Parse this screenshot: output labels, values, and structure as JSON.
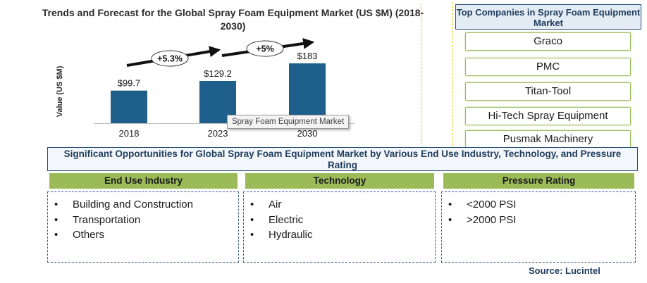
{
  "chart_data": {
    "type": "bar",
    "title": "Trends and Forecast for the Global Spray Foam Equipment Market (US $M) (2018-2030)",
    "ylabel": "Value (US $M)",
    "xlabel": "",
    "categories": [
      "2018",
      "2023",
      "2030"
    ],
    "values": [
      99.7,
      129.2,
      183
    ],
    "value_labels": [
      "$99.7",
      "$129.2",
      "$183"
    ],
    "ylim": [
      0,
      183
    ],
    "grid": false,
    "bar_color": "#1f5f8b",
    "growth_annotations": [
      {
        "from": "2018",
        "to": "2023",
        "label": "+5.3%"
      },
      {
        "from": "2023",
        "to": "2030",
        "label": "+5%"
      }
    ],
    "tooltip": "Spray Foam Equipment Market"
  },
  "companies": {
    "header": "Top Companies in Spray Foam Equipment Market",
    "items": [
      "Graco",
      "PMC",
      "Titan-Tool",
      "Hi-Tech Spray Equipment",
      "Pusmak Machinery"
    ]
  },
  "opportunities": {
    "header": "Significant Opportunities for Global Spray Foam Equipment Market by Various End Use Industry, Technology, and Pressure Rating",
    "columns": [
      {
        "title": "End Use Industry",
        "items": [
          "Building and Construction",
          "Transportation",
          "Others"
        ]
      },
      {
        "title": "Technology",
        "items": [
          "Air",
          "Electric",
          "Hydraulic"
        ]
      },
      {
        "title": "Pressure Rating",
        "items": [
          "<2000 PSI",
          ">2000 PSI"
        ]
      }
    ]
  },
  "bullet_glyph": "•",
  "source": "Source: Lucintel",
  "colors": {
    "accent_green": "#9bbb59",
    "navy": "#2a4e75"
  }
}
